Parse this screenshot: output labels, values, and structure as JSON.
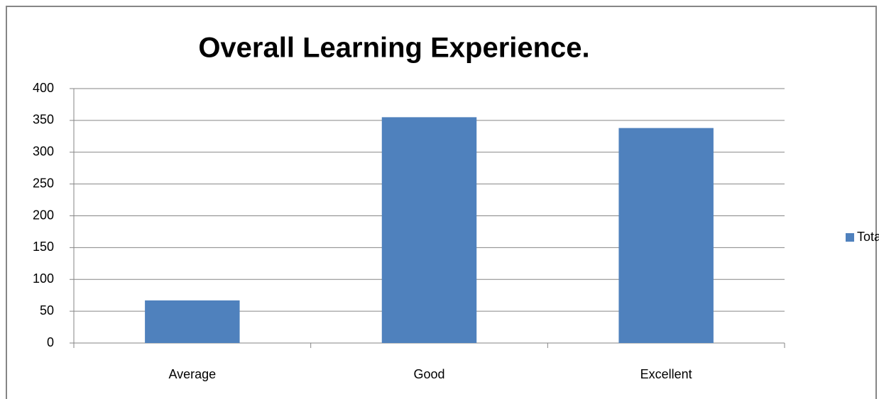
{
  "chart_data": {
    "type": "bar",
    "title": "Overall Learning Experience.",
    "categories": [
      "Average",
      "Good",
      "Excellent"
    ],
    "series": [
      {
        "name": "Total",
        "color": "#4f81bd",
        "values": [
          67,
          355,
          338
        ]
      }
    ],
    "ylim": [
      0,
      400
    ],
    "yticks": [
      0,
      50,
      100,
      150,
      200,
      250,
      300,
      350,
      400
    ],
    "grid": true,
    "legend": "right"
  }
}
